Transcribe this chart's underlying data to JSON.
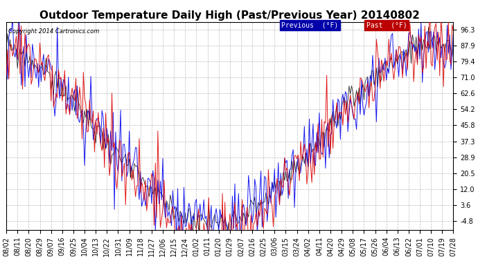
{
  "title": "Outdoor Temperature Daily High (Past/Previous Year) 20140802",
  "copyright": "Copyright 2014 Cartronics.com",
  "legend_label_prev": "Previous  (°F)",
  "legend_label_past": "Past  (°F)",
  "legend_color_prev": "#0000ee",
  "legend_color_past": "#dd0000",
  "legend_bg_prev": "#0000aa",
  "legend_bg_past": "#bb0000",
  "yticks": [
    96.3,
    87.9,
    79.4,
    71.0,
    62.6,
    54.2,
    45.8,
    37.3,
    28.9,
    20.5,
    12.0,
    3.6,
    -4.8
  ],
  "ymin": -9.5,
  "ymax": 100.5,
  "line_color_prev": "#0000ee",
  "line_color_past": "#dd0000",
  "line_color_black": "#000000",
  "bg_color": "#ffffff",
  "grid_color": "#aaaaaa",
  "title_fontsize": 11,
  "tick_fontsize": 7,
  "axis_bg": "#ffffff"
}
